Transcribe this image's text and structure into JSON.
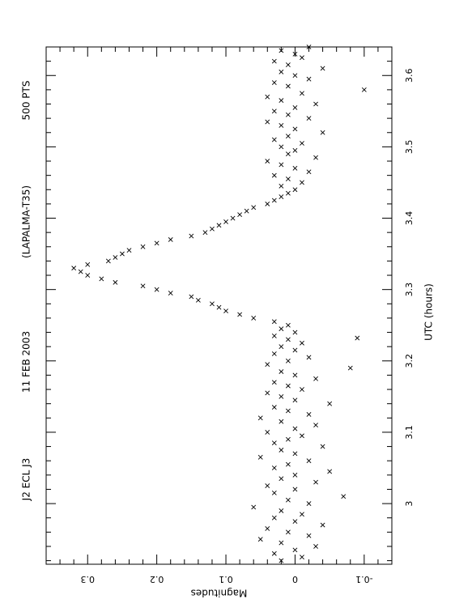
{
  "chart_data": {
    "type": "scatter",
    "orientation": "rotated 90 degrees clockwise",
    "title_parts": [
      "J2 ECL J3",
      "11 FEB 2003",
      "(LAPALMA-T35)",
      "500 PTS"
    ],
    "xlabel": "UTC (hours)",
    "ylabel": "Magnitudes",
    "x_ticks": [
      3,
      3.1,
      3.2,
      3.3,
      3.4,
      3.5,
      3.6
    ],
    "x_tick_labels": [
      "3",
      "3.1",
      "3.2",
      "3.3",
      "3.4",
      "3.5",
      "3.6"
    ],
    "y_ticks": [
      -0.1,
      0,
      0.1,
      0.2,
      0.3
    ],
    "y_tick_labels": [
      "-0.1",
      "0",
      "0.1",
      "0.2",
      "0.3"
    ],
    "xlim": [
      2.915,
      3.64
    ],
    "ylim": [
      -0.14,
      0.36
    ],
    "y_inverted": true,
    "marker": "x",
    "grid": false,
    "legend": "none",
    "color": "#000000",
    "points": [
      [
        2.92,
        0.02
      ],
      [
        2.925,
        -0.01
      ],
      [
        2.93,
        0.03
      ],
      [
        2.935,
        0.0
      ],
      [
        2.94,
        -0.03
      ],
      [
        2.945,
        0.02
      ],
      [
        2.95,
        0.05
      ],
      [
        2.955,
        -0.02
      ],
      [
        2.96,
        0.01
      ],
      [
        2.965,
        0.04
      ],
      [
        2.97,
        -0.04
      ],
      [
        2.975,
        0.0
      ],
      [
        2.98,
        0.03
      ],
      [
        2.985,
        -0.01
      ],
      [
        2.99,
        0.02
      ],
      [
        2.995,
        0.06
      ],
      [
        3.0,
        -0.02
      ],
      [
        3.005,
        0.01
      ],
      [
        3.01,
        -0.07
      ],
      [
        3.015,
        0.03
      ],
      [
        3.02,
        0.0
      ],
      [
        3.025,
        0.04
      ],
      [
        3.03,
        -0.03
      ],
      [
        3.035,
        0.02
      ],
      [
        3.04,
        0.0
      ],
      [
        3.045,
        -0.05
      ],
      [
        3.05,
        0.03
      ],
      [
        3.055,
        0.01
      ],
      [
        3.06,
        -0.02
      ],
      [
        3.065,
        0.05
      ],
      [
        3.07,
        0.0
      ],
      [
        3.075,
        0.02
      ],
      [
        3.08,
        -0.04
      ],
      [
        3.085,
        0.03
      ],
      [
        3.09,
        0.01
      ],
      [
        3.095,
        -0.01
      ],
      [
        3.1,
        0.04
      ],
      [
        3.105,
        0.0
      ],
      [
        3.11,
        -0.03
      ],
      [
        3.115,
        0.02
      ],
      [
        3.12,
        0.05
      ],
      [
        3.125,
        -0.02
      ],
      [
        3.13,
        0.01
      ],
      [
        3.135,
        0.03
      ],
      [
        3.14,
        -0.05
      ],
      [
        3.145,
        0.0
      ],
      [
        3.15,
        0.02
      ],
      [
        3.155,
        0.04
      ],
      [
        3.16,
        -0.01
      ],
      [
        3.165,
        0.01
      ],
      [
        3.17,
        0.03
      ],
      [
        3.175,
        -0.03
      ],
      [
        3.18,
        0.0
      ],
      [
        3.185,
        0.02
      ],
      [
        3.19,
        -0.08
      ],
      [
        3.195,
        0.04
      ],
      [
        3.2,
        0.01
      ],
      [
        3.205,
        -0.02
      ],
      [
        3.21,
        0.03
      ],
      [
        3.215,
        0.0
      ],
      [
        3.22,
        0.02
      ],
      [
        3.225,
        -0.01
      ],
      [
        3.23,
        0.01
      ],
      [
        3.232,
        -0.09
      ],
      [
        3.235,
        0.03
      ],
      [
        3.24,
        0.0
      ],
      [
        3.245,
        0.02
      ],
      [
        3.25,
        0.01
      ],
      [
        3.255,
        0.03
      ],
      [
        3.26,
        0.06
      ],
      [
        3.265,
        0.08
      ],
      [
        3.27,
        0.1
      ],
      [
        3.275,
        0.11
      ],
      [
        3.28,
        0.12
      ],
      [
        3.285,
        0.14
      ],
      [
        3.29,
        0.15
      ],
      [
        3.295,
        0.18
      ],
      [
        3.3,
        0.2
      ],
      [
        3.305,
        0.22
      ],
      [
        3.31,
        0.26
      ],
      [
        3.315,
        0.28
      ],
      [
        3.32,
        0.3
      ],
      [
        3.325,
        0.31
      ],
      [
        3.33,
        0.32
      ],
      [
        3.335,
        0.3
      ],
      [
        3.34,
        0.27
      ],
      [
        3.345,
        0.26
      ],
      [
        3.35,
        0.25
      ],
      [
        3.355,
        0.24
      ],
      [
        3.36,
        0.22
      ],
      [
        3.365,
        0.2
      ],
      [
        3.37,
        0.18
      ],
      [
        3.375,
        0.15
      ],
      [
        3.38,
        0.13
      ],
      [
        3.385,
        0.12
      ],
      [
        3.39,
        0.11
      ],
      [
        3.395,
        0.1
      ],
      [
        3.4,
        0.09
      ],
      [
        3.405,
        0.08
      ],
      [
        3.41,
        0.07
      ],
      [
        3.415,
        0.06
      ],
      [
        3.42,
        0.04
      ],
      [
        3.425,
        0.03
      ],
      [
        3.43,
        0.02
      ],
      [
        3.435,
        0.01
      ],
      [
        3.44,
        0.0
      ],
      [
        3.445,
        0.02
      ],
      [
        3.45,
        -0.01
      ],
      [
        3.455,
        0.01
      ],
      [
        3.46,
        0.03
      ],
      [
        3.465,
        -0.02
      ],
      [
        3.47,
        0.0
      ],
      [
        3.475,
        0.02
      ],
      [
        3.48,
        0.04
      ],
      [
        3.485,
        -0.03
      ],
      [
        3.49,
        0.01
      ],
      [
        3.495,
        0.0
      ],
      [
        3.5,
        0.02
      ],
      [
        3.505,
        -0.01
      ],
      [
        3.51,
        0.03
      ],
      [
        3.515,
        0.01
      ],
      [
        3.52,
        -0.04
      ],
      [
        3.525,
        0.0
      ],
      [
        3.53,
        0.02
      ],
      [
        3.535,
        0.04
      ],
      [
        3.54,
        -0.02
      ],
      [
        3.545,
        0.01
      ],
      [
        3.55,
        0.03
      ],
      [
        3.555,
        0.0
      ],
      [
        3.56,
        -0.03
      ],
      [
        3.565,
        0.02
      ],
      [
        3.57,
        0.04
      ],
      [
        3.575,
        -0.01
      ],
      [
        3.58,
        -0.1
      ],
      [
        3.585,
        0.01
      ],
      [
        3.59,
        0.03
      ],
      [
        3.595,
        -0.02
      ],
      [
        3.6,
        0.0
      ],
      [
        3.605,
        0.02
      ],
      [
        3.61,
        -0.04
      ],
      [
        3.615,
        0.01
      ],
      [
        3.62,
        0.03
      ],
      [
        3.625,
        -0.01
      ],
      [
        3.63,
        0.0
      ],
      [
        3.635,
        0.02
      ],
      [
        3.64,
        -0.02
      ]
    ]
  }
}
